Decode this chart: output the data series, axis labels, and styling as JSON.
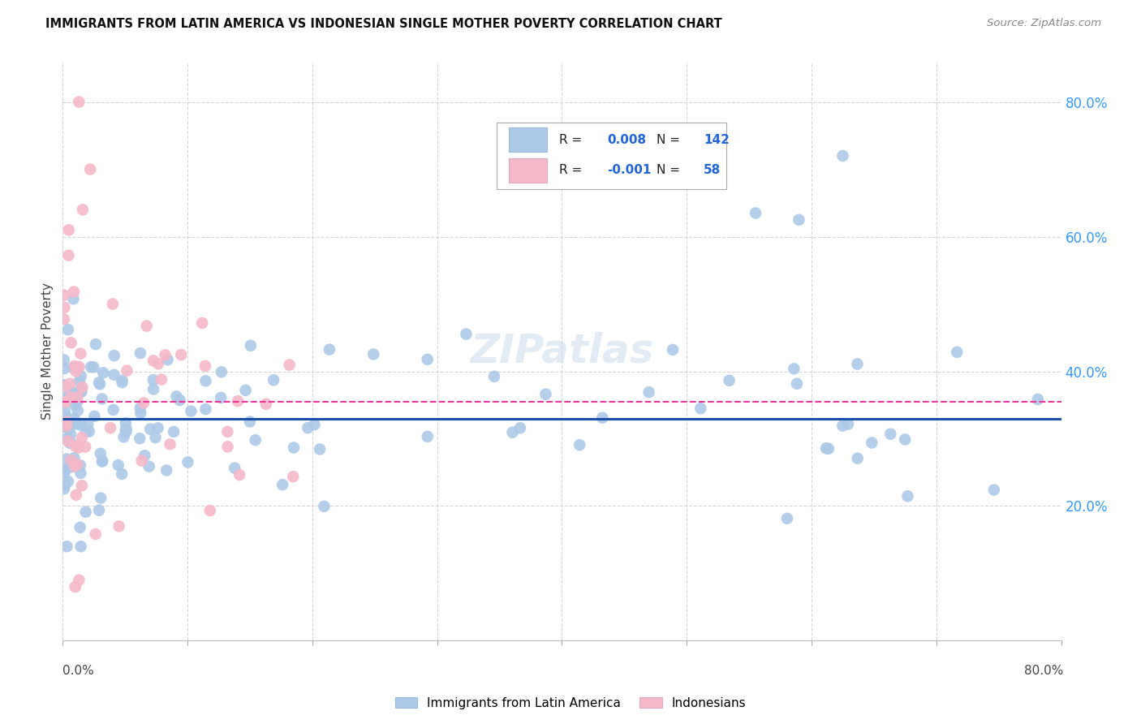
{
  "title": "IMMIGRANTS FROM LATIN AMERICA VS INDONESIAN SINGLE MOTHER POVERTY CORRELATION CHART",
  "source": "Source: ZipAtlas.com",
  "ylabel": "Single Mother Poverty",
  "right_yticks": [
    "80.0%",
    "60.0%",
    "40.0%",
    "20.0%"
  ],
  "right_ytick_vals": [
    0.8,
    0.6,
    0.4,
    0.2
  ],
  "blue_color": "#adc9e8",
  "pink_color": "#f5b8c8",
  "blue_line_color": "#1a4faa",
  "pink_line_color": "#ee3399",
  "watermark": "ZIPatlas",
  "xlim": [
    0.0,
    0.8
  ],
  "ylim": [
    0.0,
    0.86
  ],
  "blue_hline_y": 0.33,
  "pink_hline_y": 0.355,
  "background_color": "#ffffff",
  "grid_color": "#cccccc",
  "blue_r": "0.008",
  "blue_n": "142",
  "pink_r": "-0.001",
  "pink_n": "58"
}
